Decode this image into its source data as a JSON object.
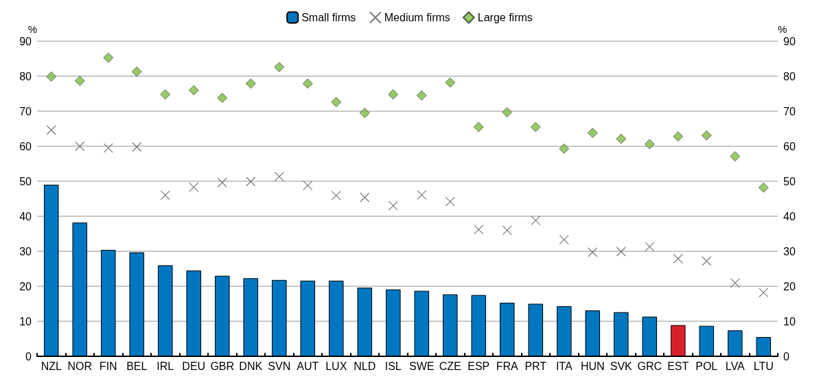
{
  "chart_data": {
    "type": "bar",
    "categories": [
      "NZL",
      "NOR",
      "FIN",
      "BEL",
      "IRL",
      "DEU",
      "GBR",
      "DNK",
      "SVN",
      "AUT",
      "LUX",
      "NLD",
      "ISL",
      "SWE",
      "CZE",
      "ESP",
      "FRA",
      "PRT",
      "ITA",
      "HUN",
      "SVK",
      "GRC",
      "EST",
      "POL",
      "LVA",
      "LTU"
    ],
    "series": [
      {
        "name": "Small firms",
        "color": "#0077c0",
        "colors": [
          "#0077c0",
          "#0077c0",
          "#0077c0",
          "#0077c0",
          "#0077c0",
          "#0077c0",
          "#0077c0",
          "#0077c0",
          "#0077c0",
          "#0077c0",
          "#0077c0",
          "#0077c0",
          "#0077c0",
          "#0077c0",
          "#0077c0",
          "#0077c0",
          "#0077c0",
          "#0077c0",
          "#0077c0",
          "#0077c0",
          "#0077c0",
          "#0077c0",
          "#d9202a",
          "#0077c0",
          "#0077c0",
          "#0077c0"
        ],
        "values": [
          49,
          38.2,
          30.4,
          29.7,
          26,
          24.5,
          23,
          22.3,
          21.8,
          21.6,
          21.6,
          19.6,
          19.1,
          18.7,
          17.7,
          17.5,
          15.3,
          15,
          14.3,
          13.1,
          12.6,
          11.3,
          8.9,
          8.7,
          7.4,
          5.5
        ]
      },
      {
        "name": "Medium firms",
        "type": "scatter",
        "marker": "cross",
        "color": "#595959",
        "values": [
          64.6,
          60,
          59.5,
          59.8,
          46,
          48.3,
          49.6,
          49.9,
          51.3,
          48.8,
          45.9,
          45.4,
          43,
          46.1,
          44.2,
          36.2,
          36,
          38.8,
          33.3,
          29.7,
          29.9,
          31.3,
          27.9,
          27.2,
          20.9,
          18.2
        ]
      },
      {
        "name": "Large firms",
        "type": "scatter",
        "marker": "diamond",
        "color": "#7dbb42",
        "values": [
          79.9,
          78.7,
          85.3,
          81.3,
          74.8,
          76,
          73.8,
          77.9,
          82.6,
          77.9,
          72.6,
          69.5,
          74.8,
          74.5,
          78.2,
          65.5,
          69.7,
          65.5,
          59.3,
          63.8,
          62.1,
          60.6,
          62.8,
          63.1,
          57.1,
          48.2
        ]
      }
    ],
    "ylabel": "%",
    "y2label": "%",
    "ylim": [
      0,
      90
    ],
    "yticks": [
      0,
      10,
      20,
      30,
      40,
      50,
      60,
      70,
      80,
      90
    ],
    "y2lim": [
      0,
      90
    ],
    "y2ticks": [
      0,
      10,
      20,
      30,
      40,
      50,
      60,
      70,
      80,
      90
    ],
    "grid": "y",
    "legend": "top"
  }
}
